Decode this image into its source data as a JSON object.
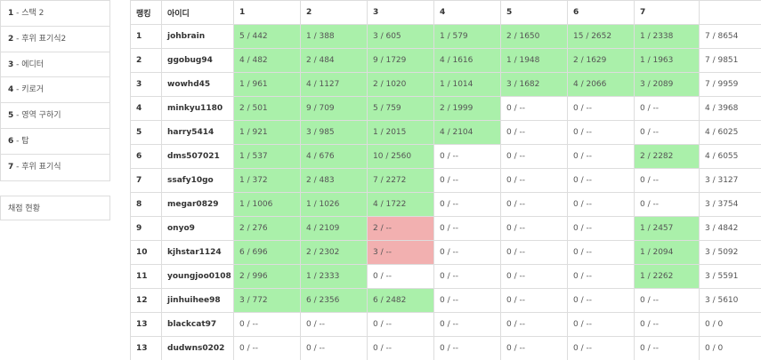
{
  "sidebar": {
    "problems": [
      {
        "num": "1",
        "title": "스택 2"
      },
      {
        "num": "2",
        "title": "후위 표기식2"
      },
      {
        "num": "3",
        "title": "에디터"
      },
      {
        "num": "4",
        "title": "키로거"
      },
      {
        "num": "5",
        "title": "영역 구하기"
      },
      {
        "num": "6",
        "title": "탑"
      },
      {
        "num": "7",
        "title": "후위 표기식"
      }
    ],
    "status_link": "채점 현황"
  },
  "board": {
    "headers": [
      "랭킹",
      "아이디",
      "1",
      "2",
      "3",
      "4",
      "5",
      "6",
      "7",
      ""
    ],
    "rows": [
      {
        "rank": "1",
        "id": "johbrain",
        "cells": [
          {
            "t": "5 / 442",
            "s": "ac"
          },
          {
            "t": "1 / 388",
            "s": "ac"
          },
          {
            "t": "3 / 605",
            "s": "ac"
          },
          {
            "t": "1 / 579",
            "s": "ac"
          },
          {
            "t": "2 / 1650",
            "s": "ac"
          },
          {
            "t": "15 / 2652",
            "s": "ac"
          },
          {
            "t": "1 / 2338",
            "s": "ac"
          }
        ],
        "total": "7 / 8654"
      },
      {
        "rank": "2",
        "id": "ggobug94",
        "cells": [
          {
            "t": "4 / 482",
            "s": "ac"
          },
          {
            "t": "2 / 484",
            "s": "ac"
          },
          {
            "t": "9 / 1729",
            "s": "ac"
          },
          {
            "t": "4 / 1616",
            "s": "ac"
          },
          {
            "t": "1 / 1948",
            "s": "ac"
          },
          {
            "t": "2 / 1629",
            "s": "ac"
          },
          {
            "t": "1 / 1963",
            "s": "ac"
          }
        ],
        "total": "7 / 9851"
      },
      {
        "rank": "3",
        "id": "wowhd45",
        "cells": [
          {
            "t": "1 / 961",
            "s": "ac"
          },
          {
            "t": "4 / 1127",
            "s": "ac"
          },
          {
            "t": "2 / 1020",
            "s": "ac"
          },
          {
            "t": "1 / 1014",
            "s": "ac"
          },
          {
            "t": "3 / 1682",
            "s": "ac"
          },
          {
            "t": "4 / 2066",
            "s": "ac"
          },
          {
            "t": "3 / 2089",
            "s": "ac"
          }
        ],
        "total": "7 / 9959"
      },
      {
        "rank": "4",
        "id": "minkyu1180",
        "cells": [
          {
            "t": "2 / 501",
            "s": "ac"
          },
          {
            "t": "9 / 709",
            "s": "ac"
          },
          {
            "t": "5 / 759",
            "s": "ac"
          },
          {
            "t": "2 / 1999",
            "s": "ac"
          },
          {
            "t": "0 / --",
            "s": ""
          },
          {
            "t": "0 / --",
            "s": ""
          },
          {
            "t": "0 / --",
            "s": ""
          }
        ],
        "total": "4 / 3968"
      },
      {
        "rank": "5",
        "id": "harry5414",
        "cells": [
          {
            "t": "1 / 921",
            "s": "ac"
          },
          {
            "t": "3 / 985",
            "s": "ac"
          },
          {
            "t": "1 / 2015",
            "s": "ac"
          },
          {
            "t": "4 / 2104",
            "s": "ac"
          },
          {
            "t": "0 / --",
            "s": ""
          },
          {
            "t": "0 / --",
            "s": ""
          },
          {
            "t": "0 / --",
            "s": ""
          }
        ],
        "total": "4 / 6025"
      },
      {
        "rank": "6",
        "id": "dms507021",
        "cells": [
          {
            "t": "1 / 537",
            "s": "ac"
          },
          {
            "t": "4 / 676",
            "s": "ac"
          },
          {
            "t": "10 / 2560",
            "s": "ac"
          },
          {
            "t": "0 / --",
            "s": ""
          },
          {
            "t": "0 / --",
            "s": ""
          },
          {
            "t": "0 / --",
            "s": ""
          },
          {
            "t": "2 / 2282",
            "s": "ac"
          }
        ],
        "total": "4 / 6055"
      },
      {
        "rank": "7",
        "id": "ssafy10go",
        "cells": [
          {
            "t": "1 / 372",
            "s": "ac"
          },
          {
            "t": "2 / 483",
            "s": "ac"
          },
          {
            "t": "7 / 2272",
            "s": "ac"
          },
          {
            "t": "0 / --",
            "s": ""
          },
          {
            "t": "0 / --",
            "s": ""
          },
          {
            "t": "0 / --",
            "s": ""
          },
          {
            "t": "0 / --",
            "s": ""
          }
        ],
        "total": "3 / 3127"
      },
      {
        "rank": "8",
        "id": "megar0829",
        "cells": [
          {
            "t": "1 / 1006",
            "s": "ac"
          },
          {
            "t": "1 / 1026",
            "s": "ac"
          },
          {
            "t": "4 / 1722",
            "s": "ac"
          },
          {
            "t": "0 / --",
            "s": ""
          },
          {
            "t": "0 / --",
            "s": ""
          },
          {
            "t": "0 / --",
            "s": ""
          },
          {
            "t": "0 / --",
            "s": ""
          }
        ],
        "total": "3 / 3754"
      },
      {
        "rank": "9",
        "id": "onyo9",
        "cells": [
          {
            "t": "2 / 276",
            "s": "ac"
          },
          {
            "t": "4 / 2109",
            "s": "ac"
          },
          {
            "t": "2 / --",
            "s": "wa"
          },
          {
            "t": "0 / --",
            "s": ""
          },
          {
            "t": "0 / --",
            "s": ""
          },
          {
            "t": "0 / --",
            "s": ""
          },
          {
            "t": "1 / 2457",
            "s": "ac"
          }
        ],
        "total": "3 / 4842"
      },
      {
        "rank": "10",
        "id": "kjhstar1124",
        "cells": [
          {
            "t": "6 / 696",
            "s": "ac"
          },
          {
            "t": "2 / 2302",
            "s": "ac"
          },
          {
            "t": "3 / --",
            "s": "wa"
          },
          {
            "t": "0 / --",
            "s": ""
          },
          {
            "t": "0 / --",
            "s": ""
          },
          {
            "t": "0 / --",
            "s": ""
          },
          {
            "t": "1 / 2094",
            "s": "ac"
          }
        ],
        "total": "3 / 5092"
      },
      {
        "rank": "11",
        "id": "youngjoo0108",
        "cells": [
          {
            "t": "2 / 996",
            "s": "ac"
          },
          {
            "t": "1 / 2333",
            "s": "ac"
          },
          {
            "t": "0 / --",
            "s": ""
          },
          {
            "t": "0 / --",
            "s": ""
          },
          {
            "t": "0 / --",
            "s": ""
          },
          {
            "t": "0 / --",
            "s": ""
          },
          {
            "t": "1 / 2262",
            "s": "ac"
          }
        ],
        "total": "3 / 5591"
      },
      {
        "rank": "12",
        "id": "jinhuihee98",
        "cells": [
          {
            "t": "3 / 772",
            "s": "ac"
          },
          {
            "t": "6 / 2356",
            "s": "ac"
          },
          {
            "t": "6 / 2482",
            "s": "ac"
          },
          {
            "t": "0 / --",
            "s": ""
          },
          {
            "t": "0 / --",
            "s": ""
          },
          {
            "t": "0 / --",
            "s": ""
          },
          {
            "t": "0 / --",
            "s": ""
          }
        ],
        "total": "3 / 5610"
      },
      {
        "rank": "13",
        "id": "blackcat97",
        "cells": [
          {
            "t": "0 / --",
            "s": ""
          },
          {
            "t": "0 / --",
            "s": ""
          },
          {
            "t": "0 / --",
            "s": ""
          },
          {
            "t": "0 / --",
            "s": ""
          },
          {
            "t": "0 / --",
            "s": ""
          },
          {
            "t": "0 / --",
            "s": ""
          },
          {
            "t": "0 / --",
            "s": ""
          }
        ],
        "total": "0 / 0"
      },
      {
        "rank": "13",
        "id": "dudwns0202",
        "cells": [
          {
            "t": "0 / --",
            "s": ""
          },
          {
            "t": "0 / --",
            "s": ""
          },
          {
            "t": "0 / --",
            "s": ""
          },
          {
            "t": "0 / --",
            "s": ""
          },
          {
            "t": "0 / --",
            "s": ""
          },
          {
            "t": "0 / --",
            "s": ""
          },
          {
            "t": "0 / --",
            "s": ""
          }
        ],
        "total": "0 / 0"
      }
    ]
  },
  "colors": {
    "accepted": "#aaf0aa",
    "wrong": "#f2b0b0",
    "border": "#dddddd"
  }
}
